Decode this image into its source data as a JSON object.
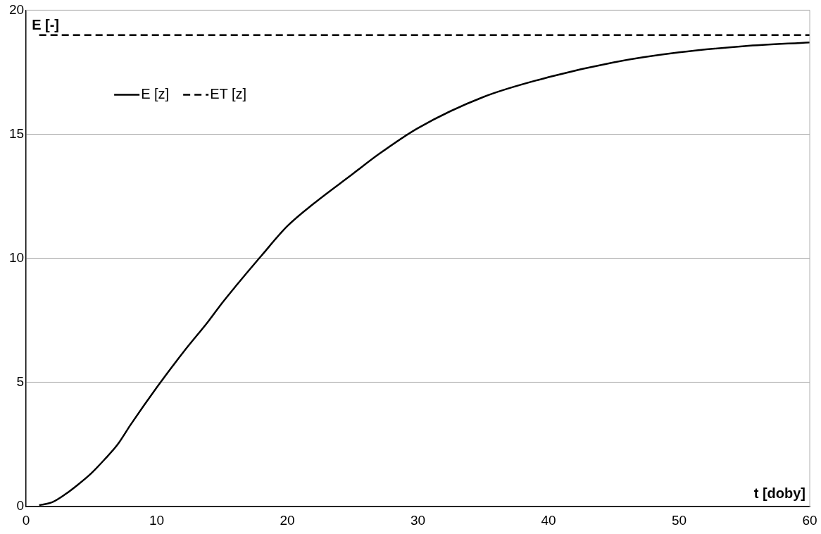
{
  "chart_data": {
    "type": "line",
    "xlabel": "t [doby]",
    "ylabel": "E [-]",
    "xlim": [
      0,
      60
    ],
    "xticks": [
      0,
      10,
      20,
      30,
      40,
      50,
      60
    ],
    "ylim": [
      0,
      20
    ],
    "yticks": [
      0,
      5,
      10,
      15,
      20
    ],
    "grid": "y",
    "legend": "top left",
    "marker": "none",
    "series": [
      {
        "name": "E [z]",
        "color": "#000000",
        "line_style": "solid",
        "x": [
          1,
          2,
          3,
          4,
          5,
          6,
          7,
          8,
          10,
          12,
          14,
          15,
          16,
          18,
          20,
          22,
          25,
          27,
          30,
          35,
          40,
          45,
          50,
          55,
          60
        ],
        "values": [
          0.06,
          0.18,
          0.5,
          0.9,
          1.35,
          1.9,
          2.5,
          3.3,
          4.8,
          6.2,
          7.5,
          8.2,
          8.85,
          10.1,
          11.3,
          12.2,
          13.4,
          14.2,
          15.25,
          16.5,
          17.3,
          17.9,
          18.3,
          18.55,
          18.7
        ]
      },
      {
        "name": "ET [z]",
        "color": "#000000",
        "line_style": "dashed",
        "x": [
          1,
          60
        ],
        "values": [
          19,
          19
        ]
      }
    ]
  }
}
